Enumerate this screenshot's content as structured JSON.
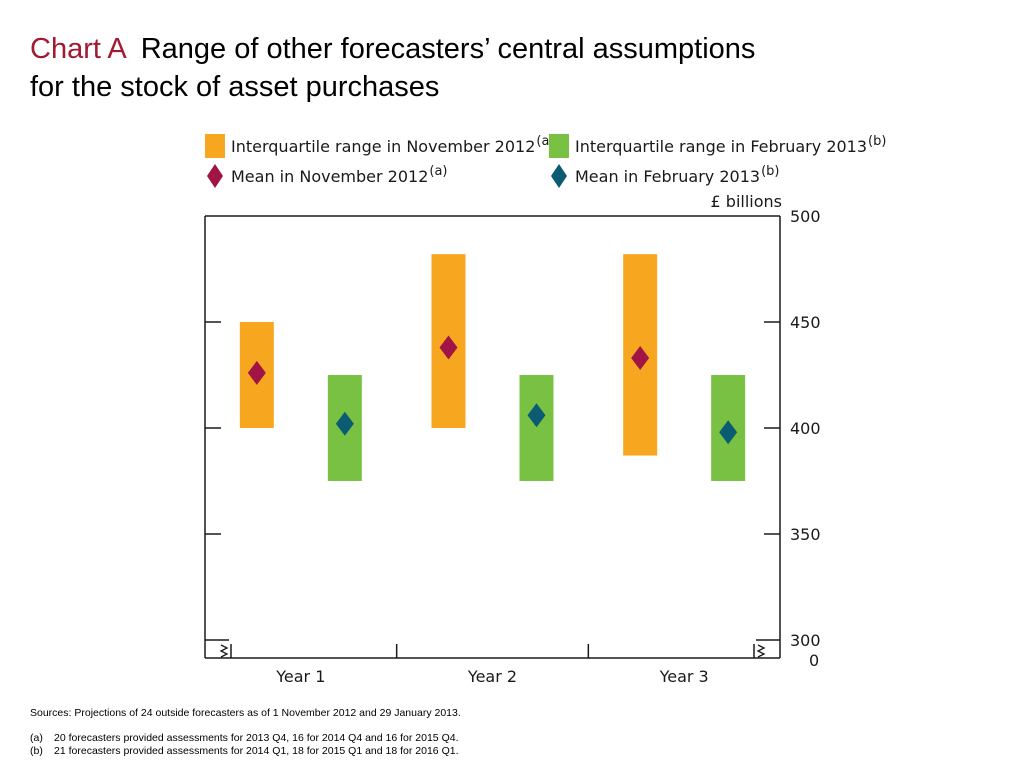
{
  "header": {
    "chart_label": "Chart A",
    "title_line1": "Range of other forecasters’ central assumptions",
    "title_line2": "for the stock of asset purchases"
  },
  "colors": {
    "nov_range": "#f7a71f",
    "feb_range": "#79c142",
    "nov_mean": "#a01546",
    "feb_mean": "#0b5c72",
    "axis": "#1a1a1a",
    "title_accent": "#a01a32"
  },
  "chart_data": {
    "type": "range-bar",
    "units_label": "£ billions",
    "categories": [
      "Year 1",
      "Year 2",
      "Year 3"
    ],
    "y_axis": {
      "min": 300,
      "max": 500,
      "ticks": [
        500,
        450,
        400,
        350,
        300
      ],
      "break_label": "0",
      "position": "right",
      "axis_break": true
    },
    "legend": [
      {
        "key": "nov_range",
        "marker": "square",
        "label": "Interquartile range in November 2012",
        "note": "(a)"
      },
      {
        "key": "feb_range",
        "marker": "square",
        "label": "Interquartile range in February 2013",
        "note": "(b)"
      },
      {
        "key": "nov_mean",
        "marker": "diamond",
        "label": "Mean in November 2012",
        "note": "(a)"
      },
      {
        "key": "feb_mean",
        "marker": "diamond",
        "label": "Mean in February 2013",
        "note": "(b)"
      }
    ],
    "series": [
      {
        "key": "nov",
        "range_color": "nov_range",
        "mean_color": "nov_mean",
        "data": [
          {
            "low": 400,
            "high": 450,
            "mean": 426
          },
          {
            "low": 400,
            "high": 482,
            "mean": 438
          },
          {
            "low": 387,
            "high": 482,
            "mean": 433
          }
        ]
      },
      {
        "key": "feb",
        "range_color": "feb_range",
        "mean_color": "feb_mean",
        "data": [
          {
            "low": 375,
            "high": 425,
            "mean": 402
          },
          {
            "low": 375,
            "high": 425,
            "mean": 406
          },
          {
            "low": 375,
            "high": 425,
            "mean": 398
          }
        ]
      }
    ]
  },
  "footnotes": {
    "sources": "Sources:  Projections of 24 outside forecasters as of 1 November 2012 and 29 January 2013.",
    "notes": [
      {
        "mark": "(a)",
        "text": "20 forecasters provided assessments for 2013 Q4, 16 for 2014 Q4 and 16 for 2015 Q4."
      },
      {
        "mark": "(b)",
        "text": "21 forecasters provided assessments for 2014 Q1, 18 for 2015 Q1 and 18 for 2016 Q1."
      }
    ]
  }
}
